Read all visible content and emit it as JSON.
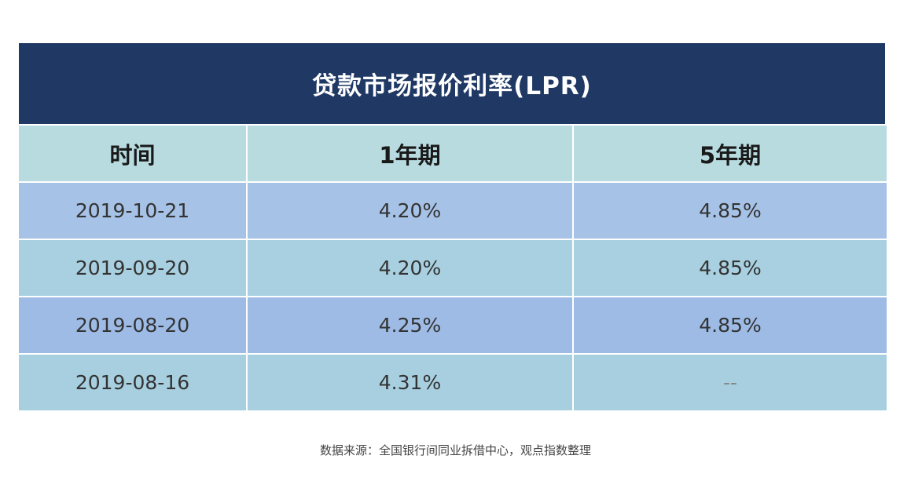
{
  "chart_data": {
    "type": "table",
    "title": "贷款市场报价利率(LPR)",
    "columns": [
      "时间",
      "1年期",
      "5年期"
    ],
    "rows": [
      [
        "2019-10-21",
        "4.20%",
        "4.85%"
      ],
      [
        "2019-09-20",
        "4.20%",
        "4.85%"
      ],
      [
        "2019-08-20",
        "4.25%",
        "4.85%"
      ],
      [
        "2019-08-16",
        "4.31%",
        "--"
      ]
    ],
    "source": "数据来源：全国银行间同业拆借中心，观点指数整理"
  },
  "colors": {
    "title_bg": "#1f3864",
    "header_bg": "#b8dbe0",
    "row_blue": "#a6c2e6",
    "row_teal": "#a8d0e0"
  }
}
